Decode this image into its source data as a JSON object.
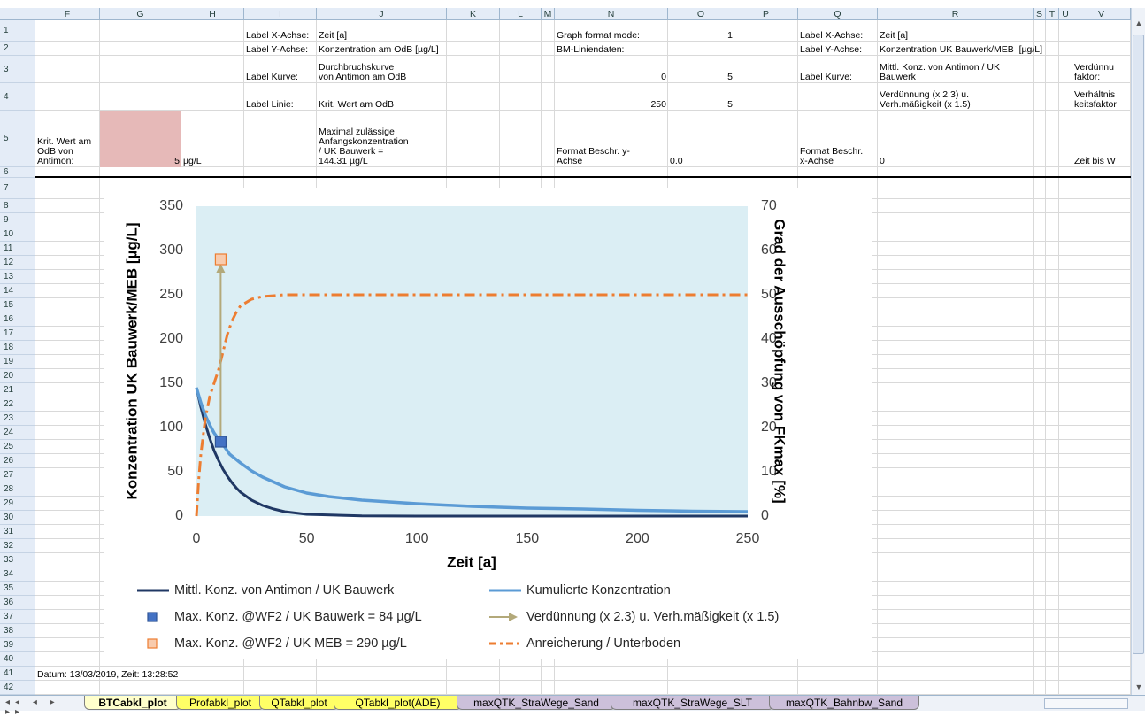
{
  "sheet": {
    "columns": [
      "F",
      "G",
      "H",
      "I",
      "J",
      "K",
      "L",
      "M",
      "N",
      "O",
      "P",
      "Q",
      "R",
      "S",
      "T",
      "U",
      "V"
    ],
    "row_numbers": [
      1,
      2,
      3,
      4,
      5,
      6,
      7,
      8,
      9,
      10,
      11,
      12,
      13,
      14,
      15,
      16,
      17,
      18,
      19,
      20,
      21,
      22,
      23,
      24,
      25,
      26,
      27,
      28,
      29,
      30,
      31,
      32,
      33,
      34,
      35,
      36,
      37,
      38,
      39,
      40,
      41,
      42
    ],
    "cells": {
      "1": {
        "I": "Label X-Achse:",
        "J": "Zeit [a]",
        "N": "Graph format mode:",
        "O": 1,
        "Q": "Label X-Achse:",
        "R": "Zeit [a]"
      },
      "2": {
        "I": "Label Y-Achse:",
        "J": "Konzentration am OdB [µg/L]",
        "N": "BM-Liniendaten:",
        "Q": "Label Y-Achse:",
        "R": "Konzentration UK Bauwerk/MEB  [µg/L]"
      },
      "3": {
        "I": "Label Kurve:",
        "J": "Durchbruchskurve\nvon Antimon am OdB",
        "N": 0,
        "O": 5,
        "Q": "Label Kurve:",
        "R": "Mittl. Konz. von Antimon / UK\nBauwerk",
        "V": "Verdünnu\nfaktor:"
      },
      "4": {
        "I": "Label Linie:",
        "J": "Krit. Wert am OdB",
        "N": 250,
        "O": 5,
        "R": "Verdünnung (x 2.3) u.\nVerh.mäßigkeit (x 1.5)",
        "V": "Verhältnis\nkeitsfaktor"
      },
      "5": {
        "F": "Krit. Wert am\nOdB von\nAntimon:",
        "G": 5,
        "H": "µg/L",
        "J": "Maximal zulässige\nAnfangskonzentration\n/ UK Bauwerk =\n144.31 µg/L",
        "N": "Format Beschr. y-\nAchse",
        "O": "0.0",
        "Q": "Format Beschr.\nx-Achse",
        "R": "0",
        "V": "Zeit bis W"
      },
      "41": {
        "F": "Datum: 13/03/2019, Zeit: 13:28:52"
      }
    },
    "tabs": [
      {
        "name": "BTCabkl_plot",
        "color": "#ffffcc"
      },
      {
        "name": "Profabkl_plot",
        "color": "#ffff66"
      },
      {
        "name": "QTabkl_plot",
        "color": "#ffff66"
      },
      {
        "name": "QTabkl_plot(ADE)",
        "color": "#ffff66"
      },
      {
        "name": "maxQTK_StraWege_Sand",
        "color": "#ccc0da"
      },
      {
        "name": "maxQTK_StraWege_SLT",
        "color": "#ccc0da"
      },
      {
        "name": "maxQTK_Bahnbw_Sand",
        "color": "#ccc0da"
      }
    ]
  },
  "chart_data": {
    "type": "line",
    "x_label": "Zeit [a]",
    "y_label": "Konzentration UK Bauwerk/MEB  [µg/L]",
    "y2_label": "Grad der Ausschöpfung von FKmax [%]",
    "xlim": [
      0,
      250
    ],
    "xticks": [
      0,
      50,
      100,
      150,
      200,
      250
    ],
    "ylim": [
      0,
      350
    ],
    "yticks": [
      0,
      50,
      100,
      150,
      200,
      250,
      300,
      350
    ],
    "y2lim": [
      0,
      70
    ],
    "y2ticks": [
      0,
      10,
      20,
      30,
      40,
      50,
      60,
      70
    ],
    "grid": false,
    "plot_background": "#dbeef4",
    "series": [
      {
        "name": "Mittl. Konz. von Antimon / UK Bauwerk",
        "style": "line",
        "color": "#203864",
        "x": [
          0,
          2,
          4,
          6,
          8,
          10,
          12,
          14,
          16,
          18,
          20,
          25,
          30,
          35,
          40,
          50,
          75,
          100,
          150,
          200,
          250
        ],
        "values": [
          145,
          123,
          104,
          88,
          74,
          63,
          53,
          45,
          38,
          32,
          27,
          18,
          12,
          8,
          5,
          2,
          0.3,
          0,
          0,
          0,
          0
        ]
      },
      {
        "name": "Kumulierte Konzentration",
        "style": "line",
        "color": "#5b9bd5",
        "x": [
          0,
          2,
          4,
          6,
          8,
          10,
          12,
          15,
          20,
          25,
          30,
          40,
          50,
          60,
          75,
          100,
          125,
          150,
          175,
          200,
          225,
          250
        ],
        "values": [
          145,
          128,
          114,
          103,
          94,
          87,
          81,
          70,
          60,
          51,
          44,
          33,
          26,
          22,
          18,
          14,
          11,
          9,
          8,
          6.5,
          5.5,
          5
        ]
      },
      {
        "name": "Max. Konz. @WF2 / UK Bauwerk = 84 µg/L",
        "style": "marker",
        "color": "#4472c4",
        "edge": "#2f5597",
        "x": [
          11
        ],
        "values": [
          84
        ]
      },
      {
        "name": "Max. Konz. @WF2 / UK MEB = 290 µg/L",
        "style": "marker",
        "color": "#f8cbad",
        "edge": "#ed7d31",
        "x": [
          11
        ],
        "values": [
          290
        ]
      },
      {
        "name": "Verdünnung (x 2.3) u. Verh.mäßigkeit (x 1.5)",
        "style": "arrow",
        "color": "#b3a97a",
        "x": [
          11,
          11
        ],
        "values": [
          84,
          290
        ]
      },
      {
        "name": "Anreicherung / Unterboden",
        "style": "line",
        "dash": "dash-dot",
        "axis": "y2",
        "color": "#ed7d31",
        "x": [
          0,
          1,
          2,
          4,
          6,
          8,
          10,
          12,
          14,
          16,
          18,
          20,
          25,
          30,
          40,
          50,
          250
        ],
        "values": [
          0,
          8,
          14,
          22,
          27,
          30,
          33,
          37,
          41,
          44,
          46,
          47.5,
          49,
          49.6,
          50,
          50,
          50
        ]
      }
    ]
  }
}
